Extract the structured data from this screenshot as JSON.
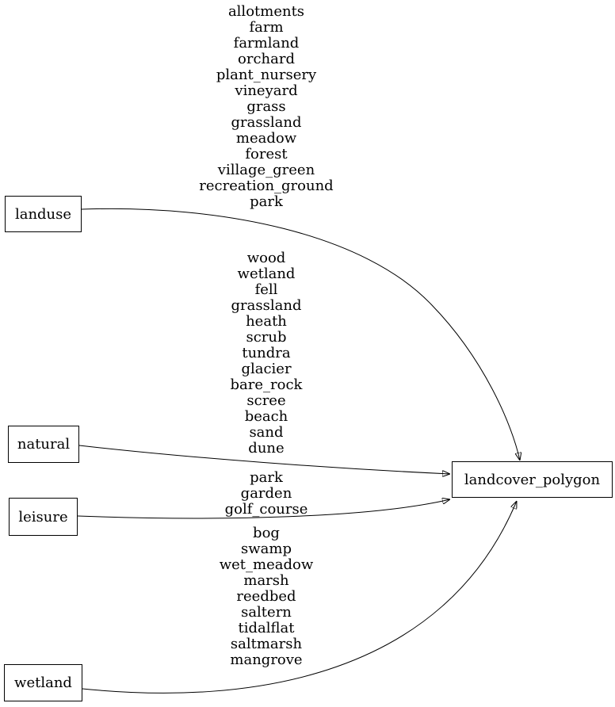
{
  "diagram": {
    "background_color": "#ffffff",
    "stroke_color": "#000000",
    "text_color": "#000000",
    "nodes": [
      {
        "id": "landuse",
        "label": "landuse"
      },
      {
        "id": "natural",
        "label": "natural"
      },
      {
        "id": "leisure",
        "label": "leisure"
      },
      {
        "id": "wetland",
        "label": "wetland"
      },
      {
        "id": "landcover_polygon",
        "label": "landcover_polygon"
      }
    ],
    "edges": [
      {
        "from": "landuse",
        "to": "landcover_polygon",
        "labels": [
          "allotments",
          "farm",
          "farmland",
          "orchard",
          "plant_nursery",
          "vineyard",
          "grass",
          "grassland",
          "meadow",
          "forest",
          "village_green",
          "recreation_ground",
          "park"
        ]
      },
      {
        "from": "natural",
        "to": "landcover_polygon",
        "labels": [
          "wood",
          "wetland",
          "fell",
          "grassland",
          "heath",
          "scrub",
          "tundra",
          "glacier",
          "bare_rock",
          "scree",
          "beach",
          "sand",
          "dune"
        ]
      },
      {
        "from": "leisure",
        "to": "landcover_polygon",
        "labels": [
          "park",
          "garden",
          "golf_course"
        ]
      },
      {
        "from": "wetland",
        "to": "landcover_polygon",
        "labels": [
          "bog",
          "swamp",
          "wet_meadow",
          "marsh",
          "reedbed",
          "saltern",
          "tidalflat",
          "saltmarsh",
          "mangrove"
        ]
      }
    ]
  }
}
